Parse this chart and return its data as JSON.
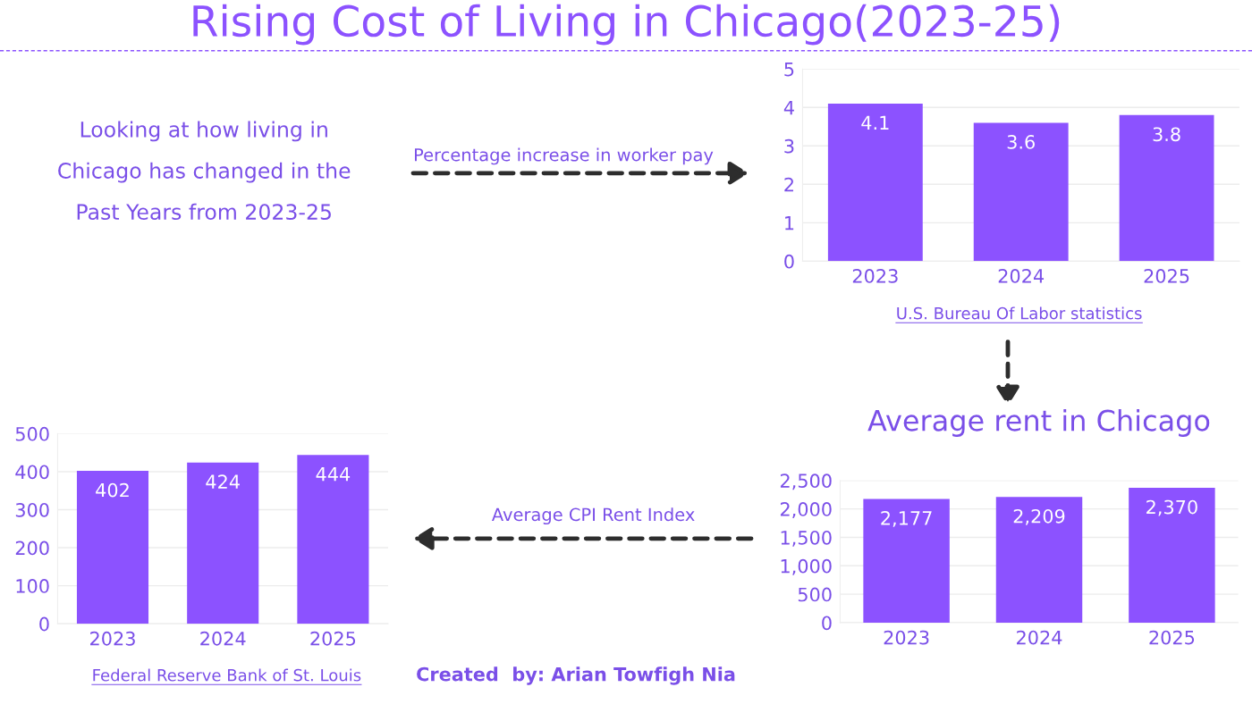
{
  "chart_data": [
    {
      "type": "other",
      "title": "Rising Cost of Living in Chicago(2023-25)",
      "annotations": [
        "Looking at how living in\nChicago has changed in the\nPast Years from 2023-25",
        "Created  by: Arian Towfigh Nia"
      ]
    },
    {
      "type": "bar",
      "annotations": [
        "Percentage increase in worker pay",
        "U.S. Bureau Of Labor statistics"
      ],
      "categories": [
        "2023",
        "2024",
        "2025"
      ],
      "values": [
        4.1,
        3.6,
        3.8
      ],
      "color": "#8c52ff",
      "ylim": [
        0,
        5
      ],
      "yticks": [
        0,
        1,
        2,
        3,
        4,
        5
      ],
      "grid": "y",
      "data_labels": true
    },
    {
      "type": "bar",
      "title": "Average rent in Chicago",
      "categories": [
        "2023",
        "2024",
        "2025"
      ],
      "values": [
        2177,
        2209,
        2370
      ],
      "value_labels": [
        "2,177",
        "2,209",
        "2,370"
      ],
      "color": "#8c52ff",
      "ylim": [
        0,
        2500
      ],
      "yticks": [
        0,
        500,
        {
          "value": 1000,
          "label": "1,000"
        },
        {
          "value": 1500,
          "label": "1,500"
        },
        {
          "value": 2000,
          "label": "2,000"
        },
        {
          "value": 2500,
          "label": "2,500"
        }
      ],
      "grid": "y"
    },
    {
      "type": "bar",
      "annotations": [
        "Average CPI Rent Index",
        "Federal Reserve Bank of St. Louis"
      ],
      "categories": [
        "2023",
        "2024",
        "2025"
      ],
      "values": [
        402,
        424,
        444
      ],
      "color": "#8c52ff",
      "ylim": [
        0,
        500
      ],
      "yticks": [
        0,
        100,
        200,
        300,
        400,
        500
      ],
      "grid": "y",
      "data_labels": true
    }
  ]
}
